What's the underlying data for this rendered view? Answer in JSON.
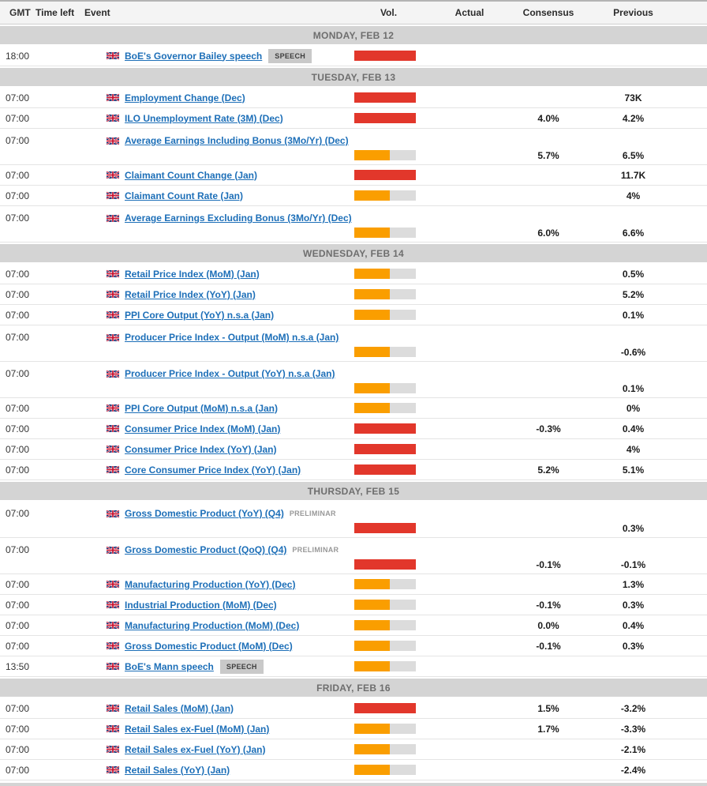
{
  "columns": [
    "GMT",
    "Time left",
    "Event",
    "Vol.",
    "Actual",
    "Consensus",
    "Previous"
  ],
  "country": "United Kingdom",
  "country_flag_icon": "uk-flag-icon",
  "colors": {
    "high_volatility": "#e2372b",
    "medium_volatility": "#fa9e00",
    "volatility_track": "#dcdcdc",
    "event_link": "#1d6fb8",
    "day_header_bg": "#d4d4d4",
    "day_header_text": "#6e6e6e"
  },
  "volatility": {
    "high": {
      "color": "#e2372b",
      "fill": 1
    },
    "medium": {
      "color": "#fa9e00",
      "fill": 0.58
    }
  },
  "sections": [
    {
      "day": "MONDAY, FEB 12",
      "rows": [
        {
          "time": "18:00",
          "event": "BoE's Governor Bailey speech",
          "badge": "SPEECH",
          "vol": "high",
          "actual": "",
          "consensus": "",
          "previous": "",
          "twoline": false
        }
      ]
    },
    {
      "day": "TUESDAY, FEB 13",
      "rows": [
        {
          "time": "07:00",
          "event": "Employment Change (Dec)",
          "vol": "high",
          "actual": "",
          "consensus": "",
          "previous": "73K",
          "twoline": false
        },
        {
          "time": "07:00",
          "event": "ILO Unemployment Rate (3M) (Dec)",
          "vol": "high",
          "actual": "",
          "consensus": "4.0%",
          "previous": "4.2%",
          "twoline": false
        },
        {
          "time": "07:00",
          "event": "Average Earnings Including Bonus (3Mo/Yr) (Dec)",
          "vol": "medium",
          "actual": "",
          "consensus": "5.7%",
          "previous": "6.5%",
          "twoline": true
        },
        {
          "time": "07:00",
          "event": "Claimant Count Change (Jan)",
          "vol": "high",
          "actual": "",
          "consensus": "",
          "previous": "11.7K",
          "twoline": false
        },
        {
          "time": "07:00",
          "event": "Claimant Count Rate (Jan)",
          "vol": "medium",
          "actual": "",
          "consensus": "",
          "previous": "4%",
          "twoline": false
        },
        {
          "time": "07:00",
          "event": "Average Earnings Excluding Bonus (3Mo/Yr) (Dec)",
          "vol": "medium",
          "actual": "",
          "consensus": "6.0%",
          "previous": "6.6%",
          "twoline": true
        }
      ]
    },
    {
      "day": "WEDNESDAY, FEB 14",
      "rows": [
        {
          "time": "07:00",
          "event": "Retail Price Index (MoM) (Jan)",
          "vol": "medium",
          "actual": "",
          "consensus": "",
          "previous": "0.5%",
          "twoline": false
        },
        {
          "time": "07:00",
          "event": "Retail Price Index (YoY) (Jan)",
          "vol": "medium",
          "actual": "",
          "consensus": "",
          "previous": "5.2%",
          "twoline": false
        },
        {
          "time": "07:00",
          "event": "PPI Core Output (YoY) n.s.a (Jan)",
          "vol": "medium",
          "actual": "",
          "consensus": "",
          "previous": "0.1%",
          "twoline": false
        },
        {
          "time": "07:00",
          "event": "Producer Price Index - Output (MoM) n.s.a (Jan)",
          "vol": "medium",
          "actual": "",
          "consensus": "",
          "previous": "-0.6%",
          "twoline": true
        },
        {
          "time": "07:00",
          "event": "Producer Price Index - Output (YoY) n.s.a (Jan)",
          "vol": "medium",
          "actual": "",
          "consensus": "",
          "previous": "0.1%",
          "twoline": true
        },
        {
          "time": "07:00",
          "event": "PPI Core Output (MoM) n.s.a (Jan)",
          "vol": "medium",
          "actual": "",
          "consensus": "",
          "previous": "0%",
          "twoline": false
        },
        {
          "time": "07:00",
          "event": "Consumer Price Index (MoM) (Jan)",
          "vol": "high",
          "actual": "",
          "consensus": "-0.3%",
          "previous": "0.4%",
          "twoline": false
        },
        {
          "time": "07:00",
          "event": "Consumer Price Index (YoY) (Jan)",
          "vol": "high",
          "actual": "",
          "consensus": "",
          "previous": "4%",
          "twoline": false
        },
        {
          "time": "07:00",
          "event": "Core Consumer Price Index (YoY) (Jan)",
          "vol": "high",
          "actual": "",
          "consensus": "5.2%",
          "previous": "5.1%",
          "twoline": false
        }
      ]
    },
    {
      "day": "THURSDAY, FEB 15",
      "rows": [
        {
          "time": "07:00",
          "event": "Gross Domestic Product (YoY) (Q4)",
          "tag": "PRELIMINAR",
          "vol": "high",
          "actual": "",
          "consensus": "",
          "previous": "0.3%",
          "twoline": true
        },
        {
          "time": "07:00",
          "event": "Gross Domestic Product (QoQ) (Q4)",
          "tag": "PRELIMINAR",
          "vol": "high",
          "actual": "",
          "consensus": "-0.1%",
          "previous": "-0.1%",
          "twoline": true
        },
        {
          "time": "07:00",
          "event": "Manufacturing Production (YoY) (Dec)",
          "vol": "medium",
          "actual": "",
          "consensus": "",
          "previous": "1.3%",
          "twoline": false
        },
        {
          "time": "07:00",
          "event": "Industrial Production (MoM) (Dec)",
          "vol": "medium",
          "actual": "",
          "consensus": "-0.1%",
          "previous": "0.3%",
          "twoline": false
        },
        {
          "time": "07:00",
          "event": "Manufacturing Production (MoM) (Dec)",
          "vol": "medium",
          "actual": "",
          "consensus": "0.0%",
          "previous": "0.4%",
          "twoline": false
        },
        {
          "time": "07:00",
          "event": "Gross Domestic Product (MoM) (Dec)",
          "vol": "medium",
          "actual": "",
          "consensus": "-0.1%",
          "previous": "0.3%",
          "twoline": false
        },
        {
          "time": "13:50",
          "event": "BoE's Mann speech",
          "badge": "SPEECH",
          "vol": "medium",
          "actual": "",
          "consensus": "",
          "previous": "",
          "twoline": false
        }
      ]
    },
    {
      "day": "FRIDAY, FEB 16",
      "rows": [
        {
          "time": "07:00",
          "event": "Retail Sales (MoM) (Jan)",
          "vol": "high",
          "actual": "",
          "consensus": "1.5%",
          "previous": "-3.2%",
          "twoline": false
        },
        {
          "time": "07:00",
          "event": "Retail Sales ex-Fuel (MoM) (Jan)",
          "vol": "medium",
          "actual": "",
          "consensus": "1.7%",
          "previous": "-3.3%",
          "twoline": false
        },
        {
          "time": "07:00",
          "event": "Retail Sales ex-Fuel (YoY) (Jan)",
          "vol": "medium",
          "actual": "",
          "consensus": "",
          "previous": "-2.1%",
          "twoline": false
        },
        {
          "time": "07:00",
          "event": "Retail Sales (YoY) (Jan)",
          "vol": "medium",
          "actual": "",
          "consensus": "",
          "previous": "-2.4%",
          "twoline": false
        }
      ]
    }
  ]
}
